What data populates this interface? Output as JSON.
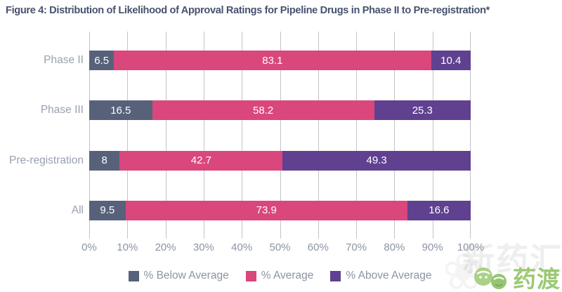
{
  "title": "Figure 4: Distribution of Likelihood of Approval Ratings for Pipeline Drugs in Phase II to Pre-registration*",
  "chart_data": {
    "type": "bar",
    "orientation": "horizontal",
    "stacked": true,
    "categories": [
      "Phase II",
      "Phase III",
      "Pre-registration",
      "All"
    ],
    "series": [
      {
        "name": "% Below Average",
        "color": "#57627a",
        "values": [
          6.5,
          16.5,
          8,
          9.5
        ]
      },
      {
        "name": "% Average",
        "color": "#d9477c",
        "values": [
          83.1,
          58.2,
          42.7,
          73.9
        ]
      },
      {
        "name": "% Above Average",
        "color": "#5f4190",
        "values": [
          10.4,
          25.3,
          49.3,
          16.6
        ]
      }
    ],
    "x_ticks": [
      "0%",
      "10%",
      "20%",
      "30%",
      "40%",
      "50%",
      "60%",
      "70%",
      "80%",
      "90%",
      "100%"
    ],
    "xlim": [
      0,
      100
    ],
    "grid": "vertical",
    "legend_position": "bottom"
  },
  "watermark": {
    "background_text": "新药汇",
    "clover_glyph": "❀",
    "logo_text": "药渡"
  },
  "colors": {
    "title": "#47536e",
    "category_label": "#99a0b0",
    "tick_label": "#8b93a4",
    "gridline": "#c3c4c8",
    "bar_value_text": "#ffffff",
    "logo_green": "#8dc05e"
  }
}
